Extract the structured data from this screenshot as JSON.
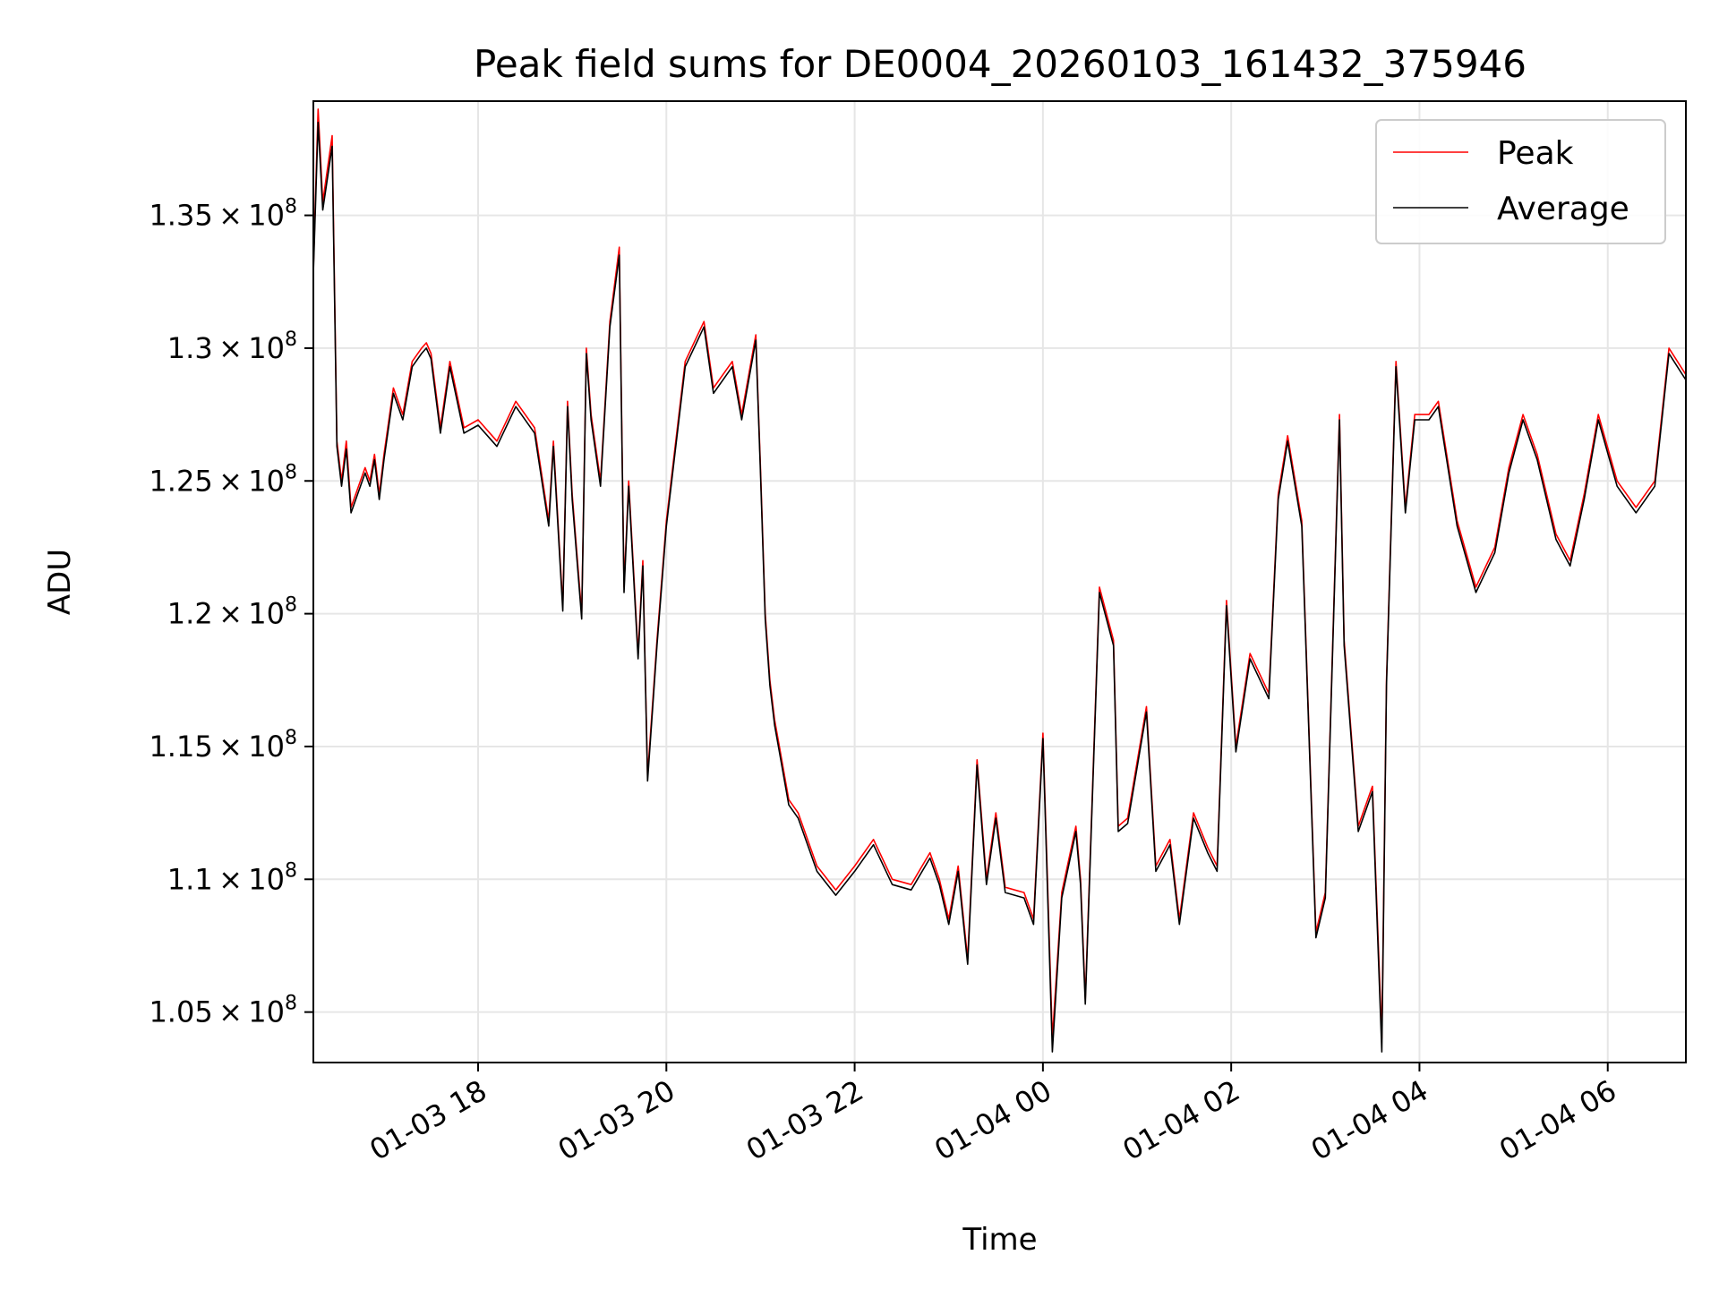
{
  "chart_data": {
    "type": "line",
    "title": "Peak field sums for DE0004_20260103_161432_375946",
    "xlabel": "Time",
    "ylabel": "ADU",
    "xlim_hours": [
      16.25,
      30.83
    ],
    "ylim": [
      103100000,
      139300000
    ],
    "grid": true,
    "legend_position": "top-right",
    "x_ticks": [
      {
        "hour": 18,
        "label": "01-03 18"
      },
      {
        "hour": 20,
        "label": "01-03 20"
      },
      {
        "hour": 22,
        "label": "01-03 22"
      },
      {
        "hour": 24,
        "label": "01-04 00"
      },
      {
        "hour": 26,
        "label": "01-04 02"
      },
      {
        "hour": 28,
        "label": "01-04 04"
      },
      {
        "hour": 30,
        "label": "01-04 06"
      }
    ],
    "y_ticks": [
      {
        "value": 105000000,
        "mantissa": "1.05",
        "exp": "8"
      },
      {
        "value": 110000000,
        "mantissa": "1.1",
        "exp": "8"
      },
      {
        "value": 115000000,
        "mantissa": "1.15",
        "exp": "8"
      },
      {
        "value": 120000000,
        "mantissa": "1.2",
        "exp": "8"
      },
      {
        "value": 125000000,
        "mantissa": "1.25",
        "exp": "8"
      },
      {
        "value": 130000000,
        "mantissa": "1.3",
        "exp": "8"
      },
      {
        "value": 135000000,
        "mantissa": "1.35",
        "exp": "8"
      }
    ],
    "x_hours": [
      16.25,
      16.3,
      16.35,
      16.45,
      16.5,
      16.55,
      16.6,
      16.65,
      16.8,
      16.85,
      16.9,
      16.95,
      17.0,
      17.1,
      17.2,
      17.3,
      17.4,
      17.45,
      17.5,
      17.6,
      17.7,
      17.85,
      18.0,
      18.2,
      18.4,
      18.6,
      18.75,
      18.8,
      18.9,
      18.95,
      19.0,
      19.1,
      19.15,
      19.2,
      19.3,
      19.4,
      19.5,
      19.55,
      19.6,
      19.7,
      19.75,
      19.8,
      19.9,
      20.0,
      20.2,
      20.4,
      20.5,
      20.7,
      20.8,
      20.95,
      21.0,
      21.05,
      21.1,
      21.15,
      21.2,
      21.3,
      21.4,
      21.6,
      21.8,
      22.0,
      22.2,
      22.4,
      22.6,
      22.8,
      22.9,
      23.0,
      23.1,
      23.2,
      23.3,
      23.4,
      23.5,
      23.6,
      23.8,
      23.9,
      24.0,
      24.1,
      24.2,
      24.35,
      24.4,
      24.45,
      24.6,
      24.75,
      24.8,
      24.9,
      25.1,
      25.2,
      25.35,
      25.45,
      25.6,
      25.75,
      25.85,
      25.95,
      26.05,
      26.2,
      26.4,
      26.5,
      26.6,
      26.75,
      26.9,
      27.0,
      27.15,
      27.2,
      27.35,
      27.5,
      27.6,
      27.65,
      27.75,
      27.85,
      27.95,
      28.1,
      28.2,
      28.4,
      28.6,
      28.8,
      28.95,
      29.1,
      29.25,
      29.45,
      29.6,
      29.75,
      29.9,
      30.1,
      30.3,
      30.5,
      30.65,
      30.83
    ],
    "series": [
      {
        "name": "Peak",
        "color": "#ff0000",
        "values": [
          133000000,
          139000000,
          135500000,
          138000000,
          126500000,
          125000000,
          126500000,
          124000000,
          125500000,
          125000000,
          126000000,
          124500000,
          126000000,
          128500000,
          127500000,
          129500000,
          130000000,
          130200000,
          129800000,
          127000000,
          129500000,
          127000000,
          127300000,
          126500000,
          128000000,
          127000000,
          123500000,
          126500000,
          120300000,
          128000000,
          124500000,
          120000000,
          130000000,
          127500000,
          125000000,
          131000000,
          133800000,
          121000000,
          125000000,
          118500000,
          122000000,
          113900000,
          119000000,
          123500000,
          129500000,
          131000000,
          128500000,
          129500000,
          127500000,
          130500000,
          125500000,
          120000000,
          117500000,
          116000000,
          115000000,
          113000000,
          112500000,
          110500000,
          109600000,
          110500000,
          111500000,
          110000000,
          109800000,
          111000000,
          110000000,
          108500000,
          110500000,
          107000000,
          114500000,
          110000000,
          112500000,
          109700000,
          109500000,
          108500000,
          115500000,
          104000000,
          109500000,
          112000000,
          110000000,
          105500000,
          121000000,
          119000000,
          112000000,
          112300000,
          116500000,
          110500000,
          111500000,
          108500000,
          112500000,
          111200000,
          110500000,
          120500000,
          115000000,
          118500000,
          117000000,
          124500000,
          126700000,
          123500000,
          108000000,
          109500000,
          127500000,
          119000000,
          112000000,
          113500000,
          104000000,
          117500000,
          129500000,
          124000000,
          127500000,
          127500000,
          128000000,
          123500000,
          121000000,
          122500000,
          125500000,
          127500000,
          126000000,
          123000000,
          122000000,
          124500000,
          127500000,
          125000000,
          124000000,
          125000000,
          130000000,
          129000000
        ]
      },
      {
        "name": "Average",
        "color": "#000000",
        "values": [
          132800000,
          138500000,
          135200000,
          137600000,
          126300000,
          124800000,
          126200000,
          123800000,
          125300000,
          124800000,
          125800000,
          124300000,
          125800000,
          128300000,
          127300000,
          129300000,
          129800000,
          130000000,
          129600000,
          126800000,
          129300000,
          126800000,
          127100000,
          126300000,
          127800000,
          126800000,
          123300000,
          126300000,
          120100000,
          127800000,
          124300000,
          119800000,
          129800000,
          127300000,
          124800000,
          130800000,
          133500000,
          120800000,
          124800000,
          118300000,
          121800000,
          113700000,
          118800000,
          123300000,
          129300000,
          130800000,
          128300000,
          129300000,
          127300000,
          130300000,
          125300000,
          119800000,
          117300000,
          115800000,
          114800000,
          112800000,
          112300000,
          110300000,
          109400000,
          110300000,
          111300000,
          109800000,
          109600000,
          110800000,
          109800000,
          108300000,
          110300000,
          106800000,
          114300000,
          109800000,
          112300000,
          109500000,
          109300000,
          108300000,
          115300000,
          103500000,
          109300000,
          111800000,
          109800000,
          105300000,
          120800000,
          118800000,
          111800000,
          112100000,
          116300000,
          110300000,
          111300000,
          108300000,
          112300000,
          111000000,
          110300000,
          120300000,
          114800000,
          118300000,
          116800000,
          124300000,
          126500000,
          123300000,
          107800000,
          109300000,
          127300000,
          118800000,
          111800000,
          113300000,
          103500000,
          117300000,
          129300000,
          123800000,
          127300000,
          127300000,
          127800000,
          123300000,
          120800000,
          122300000,
          125300000,
          127300000,
          125800000,
          122800000,
          121800000,
          124300000,
          127300000,
          124800000,
          123800000,
          124800000,
          129800000,
          128800000
        ]
      }
    ]
  }
}
